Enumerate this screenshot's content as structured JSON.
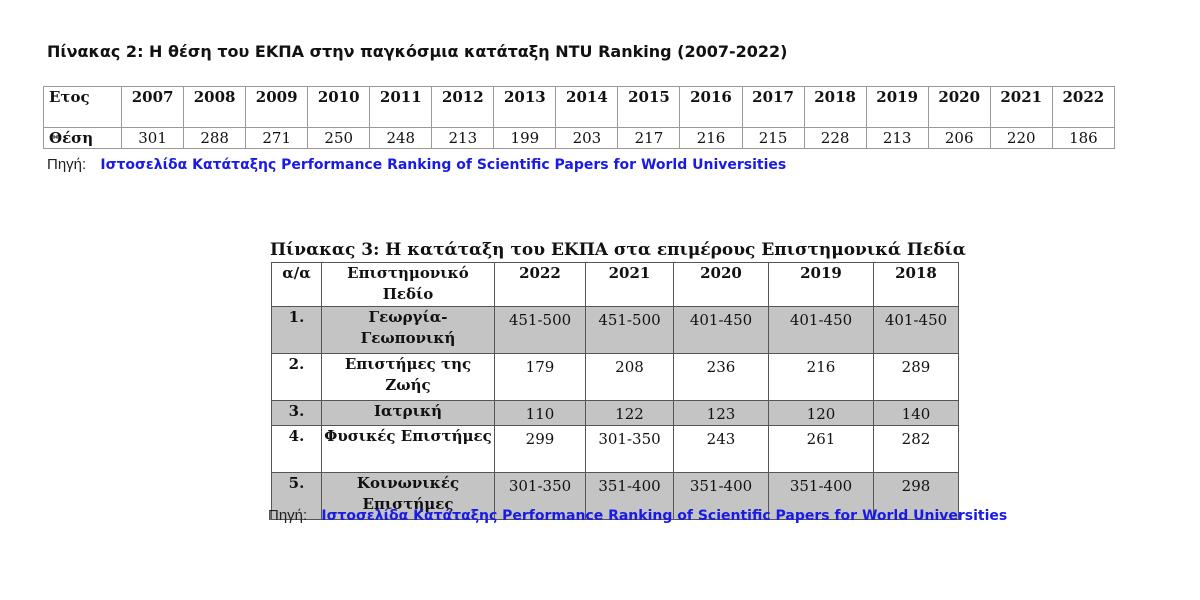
{
  "table2": {
    "title": "Πίνακας 2: Η θέση του ΕΚΠΑ στην παγκόσμια κατάταξη NTU Ranking (2007-2022)",
    "year_label": "Ετος",
    "rank_label": "Θέση",
    "years": [
      "2007",
      "2008",
      "2009",
      "2010",
      "2011",
      "2012",
      "2013",
      "2014",
      "2015",
      "2016",
      "2017",
      "2018",
      "2019",
      "2020",
      "2021",
      "2022"
    ],
    "ranks": [
      "301",
      "288",
      "271",
      "250",
      "248",
      "213",
      "199",
      "203",
      "217",
      "216",
      "215",
      "228",
      "213",
      "206",
      "220",
      "186"
    ],
    "source_label": "Πηγή:",
    "source_link": "Ιστοσελίδα Κατάταξης Performance Ranking of Scientific Papers for World Universities"
  },
  "table3": {
    "title": "Πίνακας 3: Η κατάταξη του ΕΚΠΑ στα επιμέρους Επιστημονικά Πεδία",
    "headers": [
      "α/α",
      "Επιστημονικό Πεδίο",
      "2022",
      "2021",
      "2020",
      "2019",
      "2018"
    ],
    "rows": [
      {
        "num": "1.",
        "field": "Γεωργία-Γεωπονική",
        "values": [
          "451-500",
          "451-500",
          "401-450",
          "401-450",
          "401-450"
        ]
      },
      {
        "num": "2.",
        "field": "Επιστήμες της Ζωής",
        "values": [
          "179",
          "208",
          "236",
          "216",
          "289"
        ]
      },
      {
        "num": "3.",
        "field": "Ιατρική",
        "values": [
          "110",
          "122",
          "123",
          "120",
          "140"
        ]
      },
      {
        "num": "4.",
        "field": "Φυσικές Επιστήμες",
        "values": [
          "299",
          "301-350",
          "243",
          "261",
          "282"
        ]
      },
      {
        "num": "5.",
        "field": "Κοινωνικές Επιστήμες",
        "values": [
          "301-350",
          "351-400",
          "351-400",
          "351-400",
          "298"
        ]
      }
    ],
    "source_label": "Πηγή:",
    "source_link": "Ιστοσελίδα Κατάταξης Performance Ranking of Scientific Papers for World Universities"
  }
}
